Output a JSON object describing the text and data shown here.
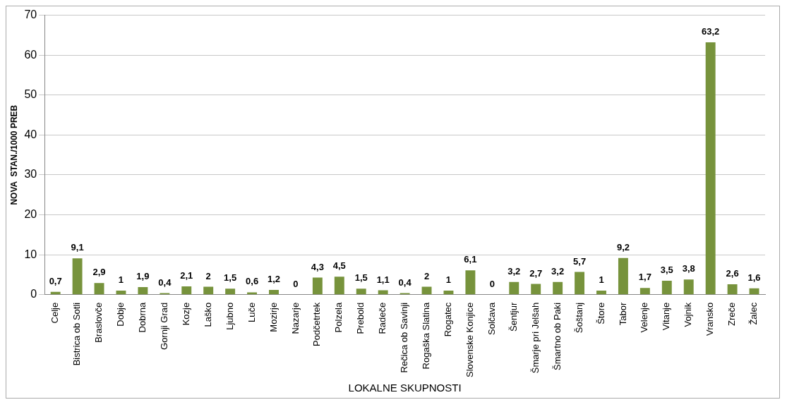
{
  "chart_data": {
    "type": "bar",
    "xlabel": "LOKALNE SKUPNOSTI",
    "ylabel": "NOVA  STAN./1000 PREB",
    "categories": [
      "Celje",
      "Bistrica ob Sotli",
      "Braslovče",
      "Dobje",
      "Dobrna",
      "Gornji Grad",
      "Kozje",
      "Laško",
      "Ljubno",
      "Luče",
      "Mozirje",
      "Nazarje",
      "Podčetrtek",
      "Polzela",
      "Prebold",
      "Radeče",
      "Rečica ob Savinji",
      "Rogaška Slatina",
      "Rogatec",
      "Slovenske Konjice",
      "Solčava",
      "Šentjur",
      "Šmarje pri Jelšah",
      "Šmartno ob Paki",
      "Šoštanj",
      "Štore",
      "Tabor",
      "Velenje",
      "Vitanje",
      "Vojnik",
      "Vransko",
      "Zreče",
      "Žalec"
    ],
    "values": [
      0.7,
      9.1,
      2.9,
      1,
      1.9,
      0.4,
      2.1,
      2,
      1.5,
      0.6,
      1.2,
      0,
      4.3,
      4.5,
      1.5,
      1.1,
      0.4,
      2,
      1,
      6.1,
      0,
      3.2,
      2.7,
      3.2,
      5.7,
      1,
      9.2,
      1.7,
      3.5,
      3.8,
      63.2,
      2.6,
      1.6
    ],
    "value_labels": [
      "0,7",
      "9,1",
      "2,9",
      "1",
      "1,9",
      "0,4",
      "2,1",
      "2",
      "1,5",
      "0,6",
      "1,2",
      "0",
      "4,3",
      "4,5",
      "1,5",
      "1,1",
      "0,4",
      "2",
      "1",
      "6,1",
      "0",
      "3,2",
      "2,7",
      "3,2",
      "5,7",
      "1",
      "9,2",
      "1,7",
      "3,5",
      "3,8",
      "63,2",
      "2,6",
      "1,6"
    ],
    "color": "#77933c",
    "ylim": [
      0,
      70
    ],
    "yticks": [
      0,
      10,
      20,
      30,
      40,
      50,
      60,
      70
    ],
    "grid": "y",
    "legend": false
  }
}
